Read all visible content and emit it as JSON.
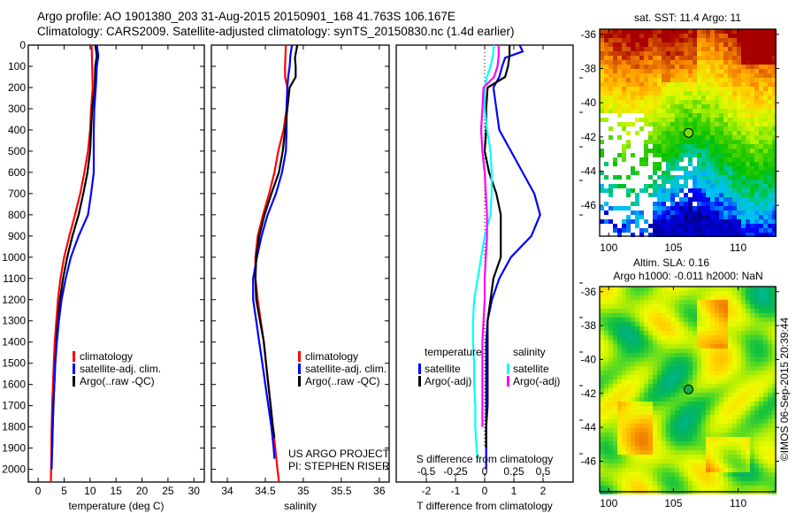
{
  "header": {
    "line1": "Argo profile: AO 1901380_203 31-Aug-2015 20150901_168 41.763S 106.167E",
    "line2": "Climatology: CARS2009. Satellite-adjusted climatology: synTS_20150830.nc (1.4d earlier)"
  },
  "footer_credit": "©IMOS 06-Sep-2015 20:39:44",
  "colors": {
    "climatology": "#ff0000",
    "satellite": "#0000ff",
    "argo": "#000000",
    "sal_satellite": "#00ffff",
    "sal_argo": "#ff00ff"
  },
  "chart_data": [
    {
      "id": "temperature",
      "type": "line",
      "xlabel": "temperature (deg C)",
      "ylabel": "",
      "xlim": [
        -1.9,
        32
      ],
      "ylim": [
        2060,
        0
      ],
      "xticks": [
        0,
        5,
        10,
        15,
        20,
        25,
        30
      ],
      "yticks": [
        0,
        100,
        200,
        300,
        400,
        500,
        600,
        700,
        800,
        900,
        1000,
        1100,
        1200,
        1300,
        1400,
        1500,
        1600,
        1700,
        1800,
        1900,
        2000
      ],
      "legend": {
        "placement": "center-left",
        "entries": [
          {
            "label": "climatology",
            "color": "#ff0000"
          },
          {
            "label": "satellite-adj. clim.",
            "color": "#0000ff"
          },
          {
            "label": "Argo(..raw -QC)",
            "color": "#000000"
          }
        ]
      },
      "series": [
        {
          "name": "climatology",
          "color": "#ff0000",
          "depth": [
            0,
            100,
            200,
            300,
            400,
            500,
            600,
            700,
            800,
            900,
            1000,
            1100,
            1200,
            1300,
            1400,
            1500,
            1600,
            1700,
            1800,
            1900,
            2000,
            2060
          ],
          "values": [
            10.3,
            10.4,
            10.5,
            10.2,
            10.0,
            9.6,
            8.9,
            8.1,
            7.1,
            6.0,
            5.0,
            4.3,
            3.8,
            3.5,
            3.2,
            3.0,
            2.85,
            2.7,
            2.6,
            2.55,
            2.5,
            2.45
          ]
        },
        {
          "name": "satellite-adj. clim.",
          "color": "#0000ff",
          "depth": [
            0,
            50,
            100,
            200,
            300,
            400,
            500,
            600,
            700,
            800,
            900,
            1000,
            1100,
            1200,
            1300,
            1400,
            1500,
            1600,
            1700,
            1800,
            1900,
            2000
          ],
          "values": [
            11.3,
            11.6,
            11.3,
            11.1,
            10.8,
            10.7,
            10.7,
            10.7,
            10.2,
            9.6,
            7.8,
            6.3,
            5.3,
            4.5,
            4.0,
            3.6,
            3.3,
            3.1,
            2.95,
            2.8,
            2.7,
            2.6
          ]
        },
        {
          "name": "Argo(..raw -QC)",
          "color": "#000000",
          "depth": [
            0,
            50,
            100,
            200,
            300,
            400,
            500,
            600,
            700,
            800,
            900,
            1000,
            1100,
            1200,
            1300,
            1400,
            1500,
            1600,
            1700,
            1800,
            1900
          ],
          "values": [
            11.0,
            11.3,
            11.0,
            10.9,
            10.4,
            10.2,
            10.0,
            9.5,
            8.7,
            7.8,
            6.6,
            5.6,
            4.8,
            4.2,
            3.8,
            3.5,
            3.3,
            3.1,
            2.9,
            2.8,
            2.7
          ]
        }
      ]
    },
    {
      "id": "salinity",
      "type": "line",
      "xlabel": "salinity",
      "xlim": [
        33.79,
        36.13
      ],
      "ylim": [
        2060,
        0
      ],
      "xticks": [
        34,
        34.5,
        35,
        35.5,
        36
      ],
      "xticklabels": [
        "34",
        "34.5",
        "35",
        "35.5",
        "36"
      ],
      "legend": {
        "placement": "center-right",
        "entries": [
          {
            "label": "climatology",
            "color": "#ff0000"
          },
          {
            "label": "satellite-adj. clim.",
            "color": "#0000ff"
          },
          {
            "label": "Argo(..raw -QC)",
            "color": "#000000"
          }
        ]
      },
      "annotation": [
        "US ARGO PROJECT",
        "PI: STEPHEN RISER"
      ],
      "series": [
        {
          "name": "climatology",
          "color": "#ff0000",
          "depth": [
            0,
            100,
            150,
            200,
            300,
            400,
            500,
            600,
            700,
            800,
            900,
            1000,
            1100,
            1200,
            1300,
            1400,
            1500,
            1600,
            1700,
            1800,
            1900,
            2000,
            2060
          ],
          "values": [
            34.77,
            34.76,
            34.76,
            34.79,
            34.78,
            34.74,
            34.67,
            34.62,
            34.55,
            34.47,
            34.4,
            34.37,
            34.37,
            34.4,
            34.44,
            34.48,
            34.51,
            34.54,
            34.57,
            34.6,
            34.63,
            34.66,
            34.68
          ]
        },
        {
          "name": "satellite-adj. clim.",
          "color": "#0000ff",
          "depth": [
            0,
            50,
            100,
            150,
            200,
            300,
            400,
            500,
            600,
            700,
            800,
            900,
            1000,
            1100,
            1200,
            1300,
            1400,
            1500,
            1600,
            1700,
            1800,
            1900,
            1950
          ],
          "values": [
            34.85,
            34.83,
            34.82,
            34.8,
            34.79,
            34.78,
            34.78,
            34.77,
            34.72,
            34.64,
            34.53,
            34.45,
            34.39,
            34.34,
            34.34,
            34.38,
            34.42,
            34.46,
            34.5,
            34.54,
            34.58,
            34.61,
            34.62
          ]
        },
        {
          "name": "Argo(..raw -QC)",
          "color": "#000000",
          "depth": [
            0,
            60,
            100,
            150,
            200,
            300,
            400,
            500,
            600,
            700,
            800,
            900,
            1000,
            1100,
            1200,
            1300,
            1400,
            1500,
            1600,
            1700,
            1800,
            1850
          ],
          "values": [
            34.92,
            34.89,
            34.9,
            34.9,
            34.82,
            34.79,
            34.76,
            34.73,
            34.68,
            34.58,
            34.49,
            34.42,
            34.38,
            34.37,
            34.38,
            34.43,
            34.48,
            34.51,
            34.54,
            34.57,
            34.6,
            34.62
          ]
        }
      ]
    },
    {
      "id": "difference",
      "type": "line",
      "xlabel": "T difference from climatology",
      "secondary_xlabel": "S difference from climatology",
      "xlim": [
        -3.03,
        3.03
      ],
      "ylim": [
        2060,
        0
      ],
      "xticks": [
        -2,
        -1,
        0,
        1,
        2
      ],
      "secondary_xticks": [
        -0.5,
        -0.25,
        0,
        0.25,
        0.5
      ],
      "secondary_xticklabels": [
        "-0.5",
        "-0.25",
        "0",
        "0.25",
        "0.5"
      ],
      "zero_line": "dotted",
      "legend": {
        "placement": "center",
        "groups": [
          {
            "title": "temperature",
            "entries": [
              {
                "label": "satellite",
                "color": "#0000ff"
              },
              {
                "label": "Argo(-adj)",
                "color": "#000000"
              }
            ]
          },
          {
            "title": "salinity",
            "entries": [
              {
                "label": "satellite",
                "color": "#00ffff"
              },
              {
                "label": "Argo(-adj)",
                "color": "#ff00ff"
              }
            ]
          }
        ]
      },
      "series": [
        {
          "name": "temperature satellite",
          "axis": "T",
          "color": "#0000ff",
          "depth": [
            0,
            30,
            60,
            100,
            150,
            200,
            300,
            400,
            500,
            600,
            700,
            800,
            900,
            1000,
            1100,
            1200,
            1300,
            1400,
            1500,
            1600,
            1700,
            1800,
            1900,
            2000
          ],
          "values": [
            1.2,
            1.3,
            0.7,
            0.6,
            0.5,
            0.3,
            0.4,
            0.5,
            0.9,
            1.3,
            1.7,
            1.9,
            1.6,
            0.9,
            0.5,
            0.25,
            0.1,
            0.05,
            0.05,
            0.05,
            0.05,
            0.05,
            0.05,
            0.05
          ]
        },
        {
          "name": "temperature Argo(-adj)",
          "axis": "T",
          "color": "#000000",
          "depth": [
            0,
            50,
            100,
            150,
            200,
            300,
            400,
            500,
            600,
            700,
            800,
            900,
            1000,
            1100,
            1200,
            1300,
            1400,
            1500,
            1600,
            1700,
            1800,
            1900
          ],
          "values": [
            0.85,
            0.85,
            0.8,
            0.7,
            0.1,
            0.05,
            0.05,
            0.0,
            0.15,
            0.4,
            0.55,
            0.55,
            0.55,
            0.3,
            0.2,
            0.1,
            0.1,
            0.1,
            0.1,
            0.1,
            0.05,
            0.05
          ]
        },
        {
          "name": "salinity satellite",
          "axis": "S",
          "color": "#00ffff",
          "depth": [
            0,
            50,
            100,
            150,
            200,
            300,
            400,
            500,
            600,
            700,
            800,
            900,
            1000,
            1100,
            1200,
            1300,
            1400,
            1500,
            1600,
            1700,
            1800,
            1900,
            1950
          ],
          "values": [
            0.08,
            0.07,
            0.05,
            0.02,
            0.0,
            0.0,
            0.02,
            0.05,
            0.06,
            0.06,
            0.05,
            0.0,
            -0.03,
            -0.06,
            -0.09,
            -0.1,
            -0.1,
            -0.09,
            -0.09,
            -0.08,
            -0.08,
            -0.07,
            -0.06
          ]
        },
        {
          "name": "salinity Argo(-adj)",
          "axis": "S",
          "color": "#ff00ff",
          "depth": [
            0,
            50,
            100,
            150,
            200,
            300,
            400,
            500,
            600,
            700,
            800,
            900,
            1000,
            1100,
            1200,
            1300,
            1400,
            1500,
            1600,
            1700,
            1800
          ],
          "values": [
            0.12,
            0.12,
            0.11,
            0.08,
            -0.01,
            -0.02,
            -0.03,
            -0.02,
            0.0,
            0.01,
            0.02,
            0.02,
            0.01,
            0.0,
            0.0,
            -0.01,
            -0.02,
            -0.02,
            -0.02,
            -0.02,
            -0.02
          ]
        }
      ]
    },
    {
      "id": "sst-map",
      "type": "heatmap",
      "title": "sat. SST: 11.4  Argo: 11",
      "xlim": [
        99.3,
        112.9
      ],
      "ylim": [
        -47.8,
        -35.7
      ],
      "xticks": [
        100,
        105,
        110
      ],
      "yticks": [
        -36,
        -38,
        -40,
        -42,
        -44,
        -46
      ],
      "float_position": {
        "lon": 106.167,
        "lat": -41.763
      },
      "color_scale": [
        "#00007f",
        "#0000ff",
        "#00bfff",
        "#00c8a0",
        "#00c000",
        "#3cd000",
        "#a0ee00",
        "#e8f800",
        "#ffd000",
        "#ff9000",
        "#d05000",
        "#a80000"
      ]
    },
    {
      "id": "sla-map",
      "type": "heatmap",
      "title": "Altim. SLA: 0.16",
      "subtitle": "Argo h1000: -0.011  h2000: NaN",
      "xlim": [
        99.3,
        112.9
      ],
      "ylim": [
        -47.8,
        -35.7
      ],
      "xticks": [
        100,
        105,
        110
      ],
      "yticks": [
        -36,
        -38,
        -40,
        -42,
        -44,
        -46
      ],
      "float_position": {
        "lon": 106.167,
        "lat": -41.763
      },
      "color_scale": [
        "#00c8c0",
        "#00b070",
        "#10c040",
        "#60dd20",
        "#bff000",
        "#eefc00",
        "#ffd800",
        "#ffb000",
        "#f08000"
      ]
    }
  ]
}
